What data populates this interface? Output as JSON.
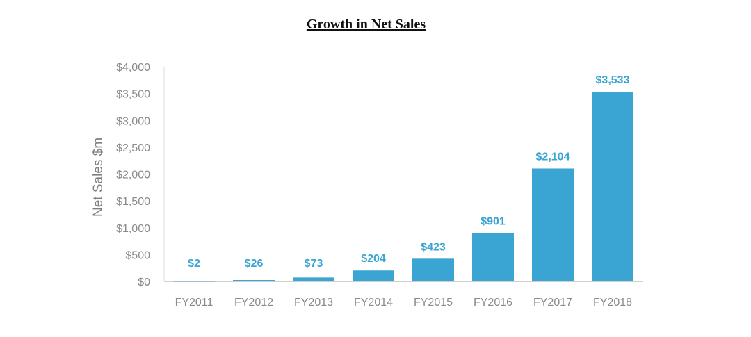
{
  "chart_data": {
    "type": "bar",
    "title": "Growth in Net Sales",
    "xlabel": "",
    "ylabel": "Net Sales $m",
    "ylim": [
      0,
      4000
    ],
    "yticks": [
      0,
      500,
      1000,
      1500,
      2000,
      2500,
      3000,
      3500,
      4000
    ],
    "ytick_labels": [
      "$0",
      "$500",
      "$1,000",
      "$1,500",
      "$2,000",
      "$2,500",
      "$3,000",
      "$3,500",
      "$4,000"
    ],
    "categories": [
      "FY2011",
      "FY2012",
      "FY2013",
      "FY2014",
      "FY2015",
      "FY2016",
      "FY2017",
      "FY2018"
    ],
    "values": [
      2,
      26,
      73,
      204,
      423,
      901,
      2104,
      3533
    ],
    "data_labels": [
      "$2",
      "$26",
      "$73",
      "$204",
      "$423",
      "$901",
      "$2,104",
      "$3,533"
    ],
    "bar_color": "#3aa5d2",
    "grid": false,
    "legend": "none"
  }
}
